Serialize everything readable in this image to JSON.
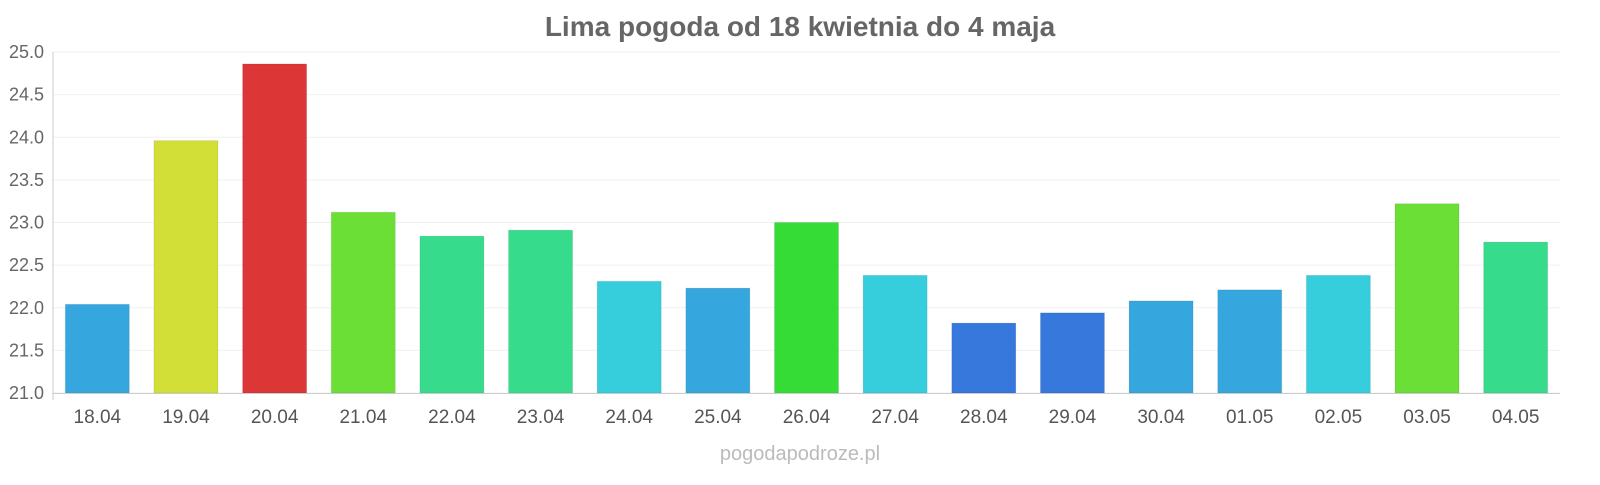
{
  "chart_data": {
    "type": "bar",
    "title": "Lima pogoda od 18 kwietnia do 4 maja",
    "xlabel": "",
    "ylabel": "",
    "ylim": [
      21.0,
      25.0
    ],
    "yticks": [
      "21.0",
      "21.5",
      "22.0",
      "22.5",
      "23.0",
      "23.5",
      "24.0",
      "24.5",
      "25.0"
    ],
    "grid": true,
    "categories": [
      "18.04",
      "19.04",
      "20.04",
      "21.04",
      "22.04",
      "23.04",
      "24.04",
      "25.04",
      "26.04",
      "27.04",
      "28.04",
      "29.04",
      "30.04",
      "01.05",
      "02.05",
      "03.05",
      "04.05"
    ],
    "values": [
      22.04,
      23.96,
      24.86,
      23.12,
      22.84,
      22.91,
      22.31,
      22.23,
      23.0,
      22.38,
      21.82,
      21.94,
      22.08,
      22.21,
      22.38,
      23.22,
      22.77
    ],
    "colors": [
      "#36a6de",
      "#d1df36",
      "#dc3636",
      "#6bdf36",
      "#36dc8c",
      "#36dc8c",
      "#36cddc",
      "#36a6de",
      "#36dc36",
      "#36cddc",
      "#3678dc",
      "#3678dc",
      "#36a6de",
      "#36a6de",
      "#36cddc",
      "#6bdf36",
      "#36dc8c"
    ]
  },
  "watermark": "pogodapodroze.pl"
}
